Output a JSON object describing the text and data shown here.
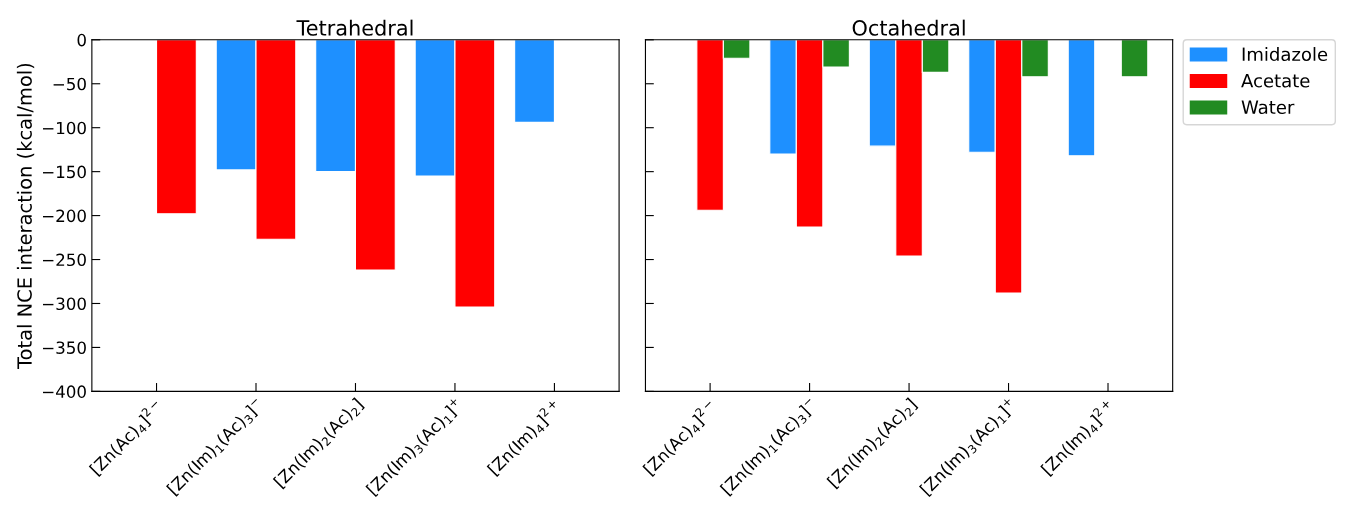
{
  "chart_data": [
    {
      "type": "bar",
      "title": "Tetrahedral",
      "ylabel": "Total NCE interaction (kcal/mol)",
      "categories": [
        "[Zn(Ac)$_{4}$]$^{2−}$",
        "[Zn(Im)$_{1}$(Ac)$_{3}$]$^{−}$",
        "[Zn(Im)$_{2}$(Ac)$_{2}$]",
        "[Zn(Im)$_{3}$(Ac)$_{1}$]$^{+}$",
        "[Zn(Im)$_{4}$]$^{2+}$"
      ],
      "series": [
        {
          "color": "#1e90ff",
          "values": [
            null,
            -148,
            -150,
            -155,
            -94
          ]
        },
        {
          "color": "#ff0000",
          "values": [
            -198,
            -227,
            -262,
            -304,
            null
          ]
        }
      ],
      "ylim": [
        -400,
        0
      ],
      "yticks": [
        -400,
        -350,
        -300,
        -250,
        -200,
        -150,
        -100,
        -50,
        0
      ],
      "grid": false,
      "legend": false
    },
    {
      "type": "bar",
      "title": "Octahedral",
      "categories": [
        "[Zn(Ac)$_{4}$]$^{2−}$",
        "[Zn(Im)$_{1}$(Ac)$_{3}$]$^{−}$",
        "[Zn(Im)$_{2}$(Ac)$_{2}$]",
        "[Zn(Im)$_{3}$(Ac)$_{1}$]$^{+}$",
        "[Zn(Im)$_{4}$]$^{2+}$"
      ],
      "series": [
        {
          "name": "Imidazole",
          "color": "#1e90ff",
          "values": [
            null,
            -130,
            -121,
            -128,
            -132
          ]
        },
        {
          "name": "Acetate",
          "color": "#ff0000",
          "values": [
            -194,
            -213,
            -246,
            -288,
            null
          ]
        },
        {
          "name": "Water",
          "color": "#228b22",
          "values": [
            -21,
            -31,
            -37,
            -42,
            -42
          ]
        }
      ],
      "ylim": [
        -400,
        0
      ],
      "yticks": [
        -400,
        -350,
        -300,
        -250,
        -200,
        -150,
        -100,
        -50,
        0
      ],
      "tick_labels": "x",
      "grid": false,
      "legend": "top right"
    }
  ]
}
